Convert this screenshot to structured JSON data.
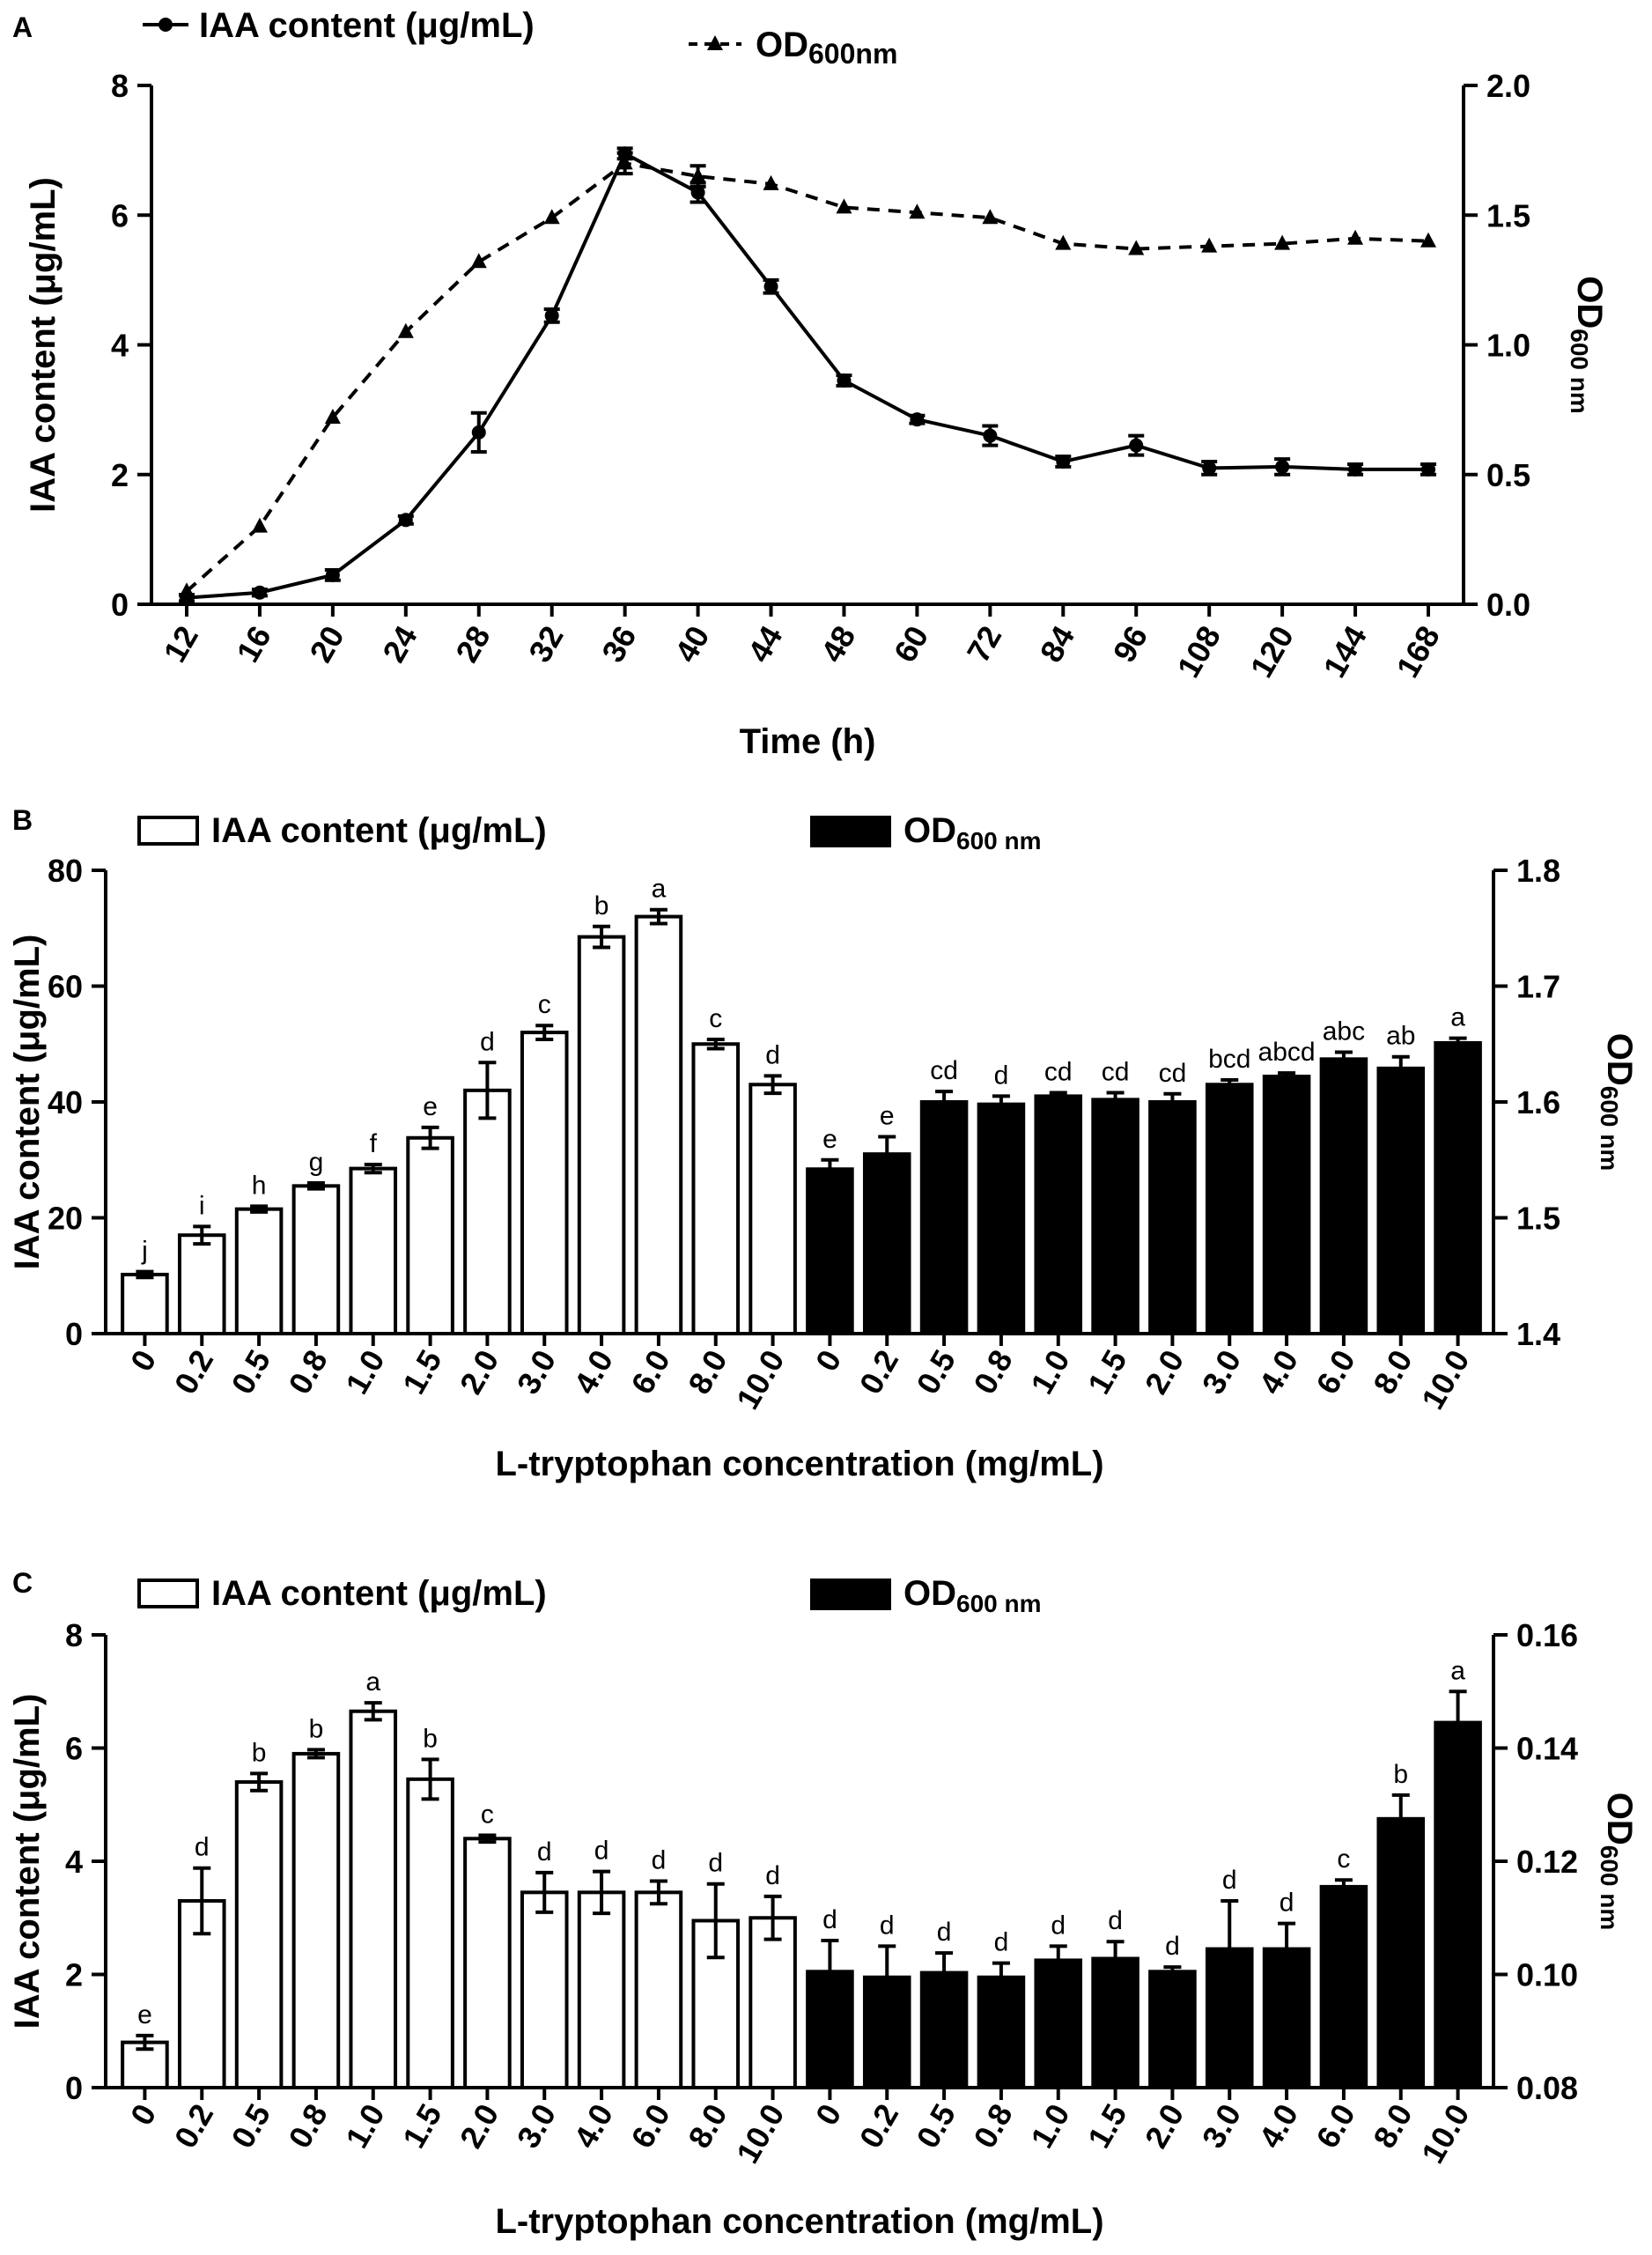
{
  "chart_data": [
    {
      "panel": "A",
      "type": "line",
      "x": [
        "12",
        "16",
        "20",
        "24",
        "28",
        "32",
        "36",
        "40",
        "44",
        "48",
        "60",
        "72",
        "84",
        "96",
        "108",
        "120",
        "144",
        "168"
      ],
      "series": [
        {
          "name": "IAA content (μg/mL)",
          "axis": "left",
          "style": "solid-circle",
          "values": [
            0.1,
            0.18,
            0.45,
            1.3,
            2.65,
            4.45,
            6.95,
            6.35,
            4.9,
            3.45,
            2.85,
            2.6,
            2.2,
            2.45,
            2.1,
            2.12,
            2.08,
            2.08
          ],
          "errors": [
            0.05,
            0.05,
            0.08,
            0.06,
            0.3,
            0.1,
            0.08,
            0.15,
            0.1,
            0.08,
            0.06,
            0.15,
            0.08,
            0.15,
            0.1,
            0.12,
            0.08,
            0.08
          ]
        },
        {
          "name": "OD600nm",
          "axis": "right",
          "style": "dashed-triangle",
          "values": [
            0.05,
            0.3,
            0.72,
            1.05,
            1.32,
            1.49,
            1.7,
            1.65,
            1.62,
            1.53,
            1.51,
            1.49,
            1.39,
            1.37,
            1.38,
            1.39,
            1.41,
            1.4
          ],
          "errors": [
            0,
            0,
            0,
            0,
            0,
            0,
            0.04,
            0.04,
            0,
            0,
            0,
            0,
            0,
            0,
            0,
            0,
            0,
            0
          ]
        }
      ],
      "legend": {
        "iaa_label": "IAA content (μg/mL)",
        "od_label_main": "OD",
        "od_label_sub": "600nm"
      },
      "ylabel": "IAA content (μg/mL)",
      "y2label_main": "OD",
      "y2label_sub": "600 nm",
      "xlabel": "Time (h)",
      "ylim": [
        0,
        8
      ],
      "yticks": [
        "0",
        "2",
        "4",
        "6",
        "8"
      ],
      "y2lim": [
        0,
        2
      ],
      "y2ticks": [
        "0.0",
        "0.5",
        "1.0",
        "1.5",
        "2.0"
      ]
    },
    {
      "panel": "B",
      "type": "bar",
      "categories": [
        "0",
        "0.2",
        "0.5",
        "0.8",
        "1.0",
        "1.5",
        "2.0",
        "3.0",
        "4.0",
        "6.0",
        "8.0",
        "10.0"
      ],
      "series": [
        {
          "name": "IAA content (μg/mL)",
          "axis": "left",
          "fill": "#ffffff",
          "values": [
            10.2,
            17,
            21.5,
            25.5,
            28.5,
            33.8,
            42,
            52,
            68.5,
            72,
            50,
            43
          ],
          "errors": [
            0.5,
            1.5,
            0.5,
            0.5,
            0.7,
            1.8,
            4.8,
            1.2,
            1.8,
            1.2,
            0.8,
            1.5
          ],
          "letters": [
            "j",
            "i",
            "h",
            "g",
            "f",
            "e",
            "d",
            "c",
            "b",
            "a",
            "c",
            "d"
          ]
        },
        {
          "name": "OD600 nm",
          "axis": "right",
          "fill": "#000000",
          "values": [
            1.542,
            1.555,
            1.6,
            1.598,
            1.605,
            1.602,
            1.6,
            1.615,
            1.622,
            1.637,
            1.629,
            1.651
          ],
          "errors": [
            0.008,
            0.015,
            0.009,
            0.007,
            0.003,
            0.006,
            0.007,
            0.004,
            0.003,
            0.006,
            0.01,
            0.004
          ],
          "letters": [
            "e",
            "e",
            "cd",
            "d",
            "cd",
            "cd",
            "cd",
            "bcd",
            "abcd",
            "abc",
            "ab",
            "a"
          ]
        }
      ],
      "legend": {
        "iaa_label": "IAA content (μg/mL)",
        "od_label_main": "OD",
        "od_label_sub": "600 nm"
      },
      "ylabel": "IAA content (μg/mL)",
      "y2label_main": "OD",
      "y2label_sub": "600 nm",
      "xlabel": "L-tryptophan concentration (mg/mL)",
      "ylim": [
        0,
        80
      ],
      "yticks": [
        "0",
        "20",
        "40",
        "60",
        "80"
      ],
      "y2lim": [
        1.4,
        1.8
      ],
      "y2ticks": [
        "1.4",
        "1.5",
        "1.6",
        "1.7",
        "1.8"
      ]
    },
    {
      "panel": "C",
      "type": "bar",
      "categories": [
        "0",
        "0.2",
        "0.5",
        "0.8",
        "1.0",
        "1.5",
        "2.0",
        "3.0",
        "4.0",
        "6.0",
        "8.0",
        "10.0"
      ],
      "series": [
        {
          "name": "IAA content (μg/mL)",
          "axis": "left",
          "fill": "#ffffff",
          "values": [
            0.8,
            3.3,
            5.4,
            5.9,
            6.65,
            5.45,
            4.4,
            3.45,
            3.45,
            3.45,
            2.95,
            3.0
          ],
          "errors": [
            0.12,
            0.58,
            0.15,
            0.07,
            0.15,
            0.35,
            0.06,
            0.35,
            0.37,
            0.2,
            0.65,
            0.38
          ],
          "letters": [
            "e",
            "d",
            "b",
            "b",
            "a",
            "b",
            "c",
            "d",
            "d",
            "d",
            "d",
            "d"
          ]
        },
        {
          "name": "OD600 nm",
          "axis": "right",
          "fill": "#000000",
          "values": [
            0.1005,
            0.0995,
            0.1003,
            0.0995,
            0.1025,
            0.1028,
            0.1005,
            0.1045,
            0.1045,
            0.1155,
            0.1275,
            0.1445
          ],
          "errors": [
            0.0055,
            0.0055,
            0.0035,
            0.0025,
            0.0025,
            0.003,
            0.0008,
            0.0085,
            0.0045,
            0.0012,
            0.0042,
            0.0055
          ],
          "letters": [
            "d",
            "d",
            "d",
            "d",
            "d",
            "d",
            "d",
            "d",
            "d",
            "c",
            "b",
            "a"
          ]
        }
      ],
      "legend": {
        "iaa_label": "IAA content (μg/mL)",
        "od_label_main": "OD",
        "od_label_sub": "600 nm"
      },
      "ylabel": "IAA content (μg/mL)",
      "y2label_main": "OD",
      "y2label_sub": "600 nm",
      "xlabel": "L-tryptophan concentration (mg/mL)",
      "ylim": [
        0,
        8
      ],
      "yticks": [
        "0",
        "2",
        "4",
        "6",
        "8"
      ],
      "y2lim": [
        0.08,
        0.16
      ],
      "y2ticks": [
        "0.08",
        "0.10",
        "0.12",
        "0.14",
        "0.16"
      ]
    }
  ]
}
